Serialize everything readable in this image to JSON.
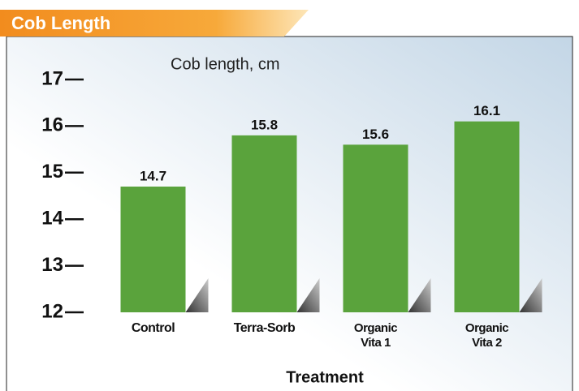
{
  "chart_data": {
    "type": "bar",
    "title": "Cob Length",
    "subtitle": "Cob length, cm",
    "x_label": "Treatment",
    "categories": [
      "Control",
      "Terra-Sorb",
      "Organic Vita 1",
      "Organic Vita 2"
    ],
    "values": [
      14.7,
      15.8,
      15.6,
      16.1
    ],
    "color": "#5aa33c",
    "ylim": [
      12,
      17
    ],
    "yticks": [
      12,
      13,
      14,
      15,
      16,
      17
    ]
  }
}
